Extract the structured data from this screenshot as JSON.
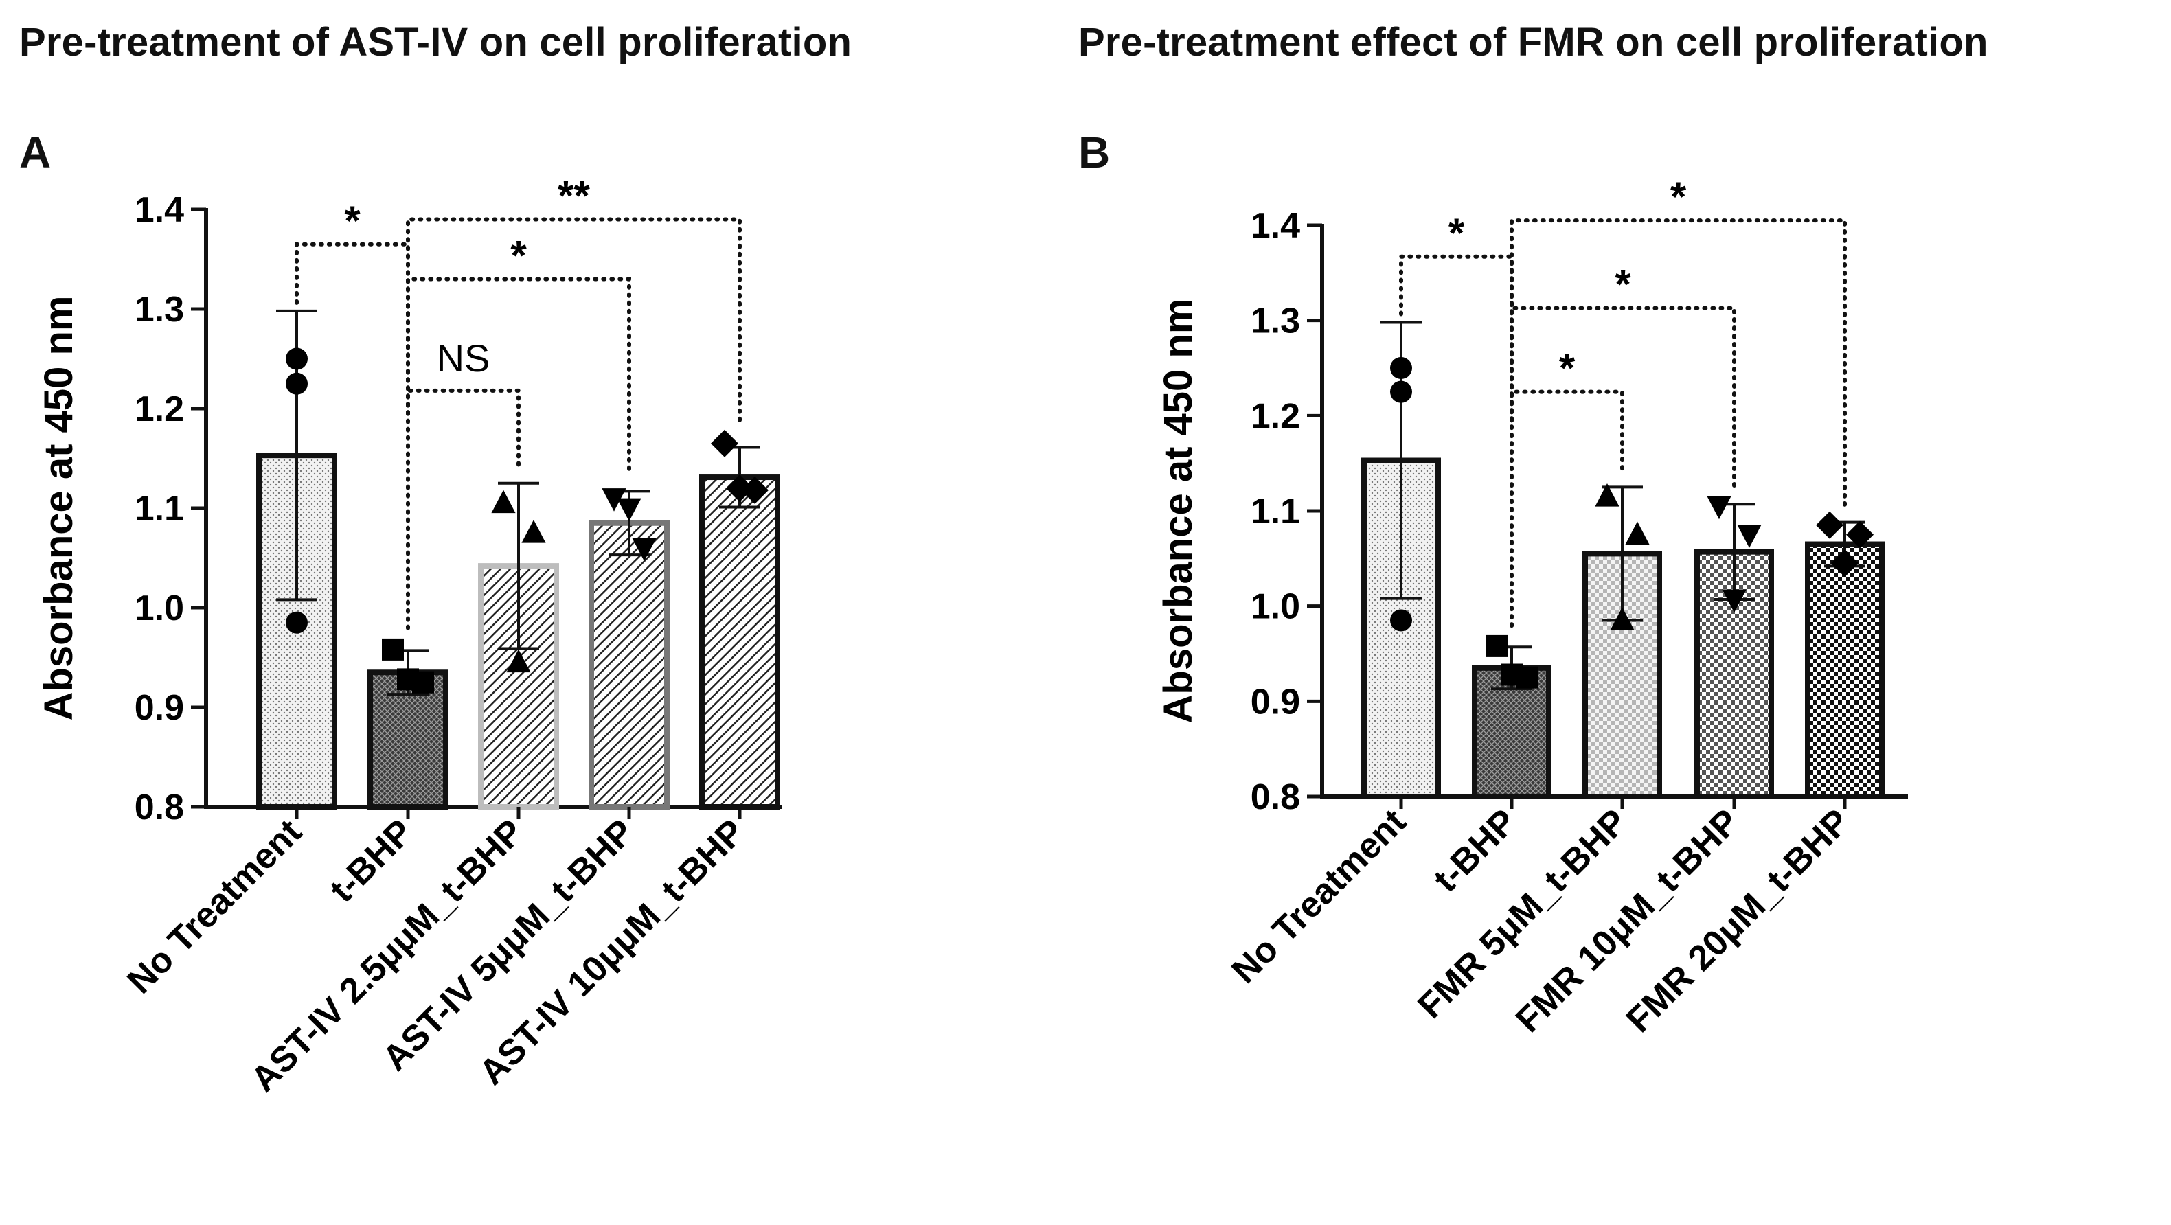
{
  "figure": {
    "panel_a_title": "Pre-treatment of AST-IV on cell proliferation",
    "panel_b_title": "Pre-treatment effect of FMR on cell proliferation",
    "panel_a_letter": "A",
    "panel_b_letter": "B"
  },
  "chart_data": [
    {
      "type": "bar",
      "panel": "A",
      "title": "Pre-treatment of AST-IV on cell proliferation",
      "xlabel": "",
      "ylabel": "Absorbance at 450 nm",
      "ylim": [
        0.8,
        1.4
      ],
      "yticks": [
        "0.8",
        "0.9",
        "1.0",
        "1.1",
        "1.2",
        "1.3",
        "1.4"
      ],
      "categories": [
        "No Treatment",
        "t-BHP",
        "AST-IV 2.5μμM_t-BHP",
        "AST-IV 5μμM_t-BHP",
        "AST-IV 10μμM_t-BHP"
      ],
      "values": [
        1.153,
        0.935,
        1.042,
        1.085,
        1.131
      ],
      "error": [
        0.145,
        0.022,
        0.083,
        0.032,
        0.03
      ],
      "points": [
        [
          1.25,
          1.225,
          0.985
        ],
        [
          0.958,
          0.925,
          0.928
        ],
        [
          1.105,
          1.075,
          0.945
        ],
        [
          1.11,
          1.06,
          1.1
        ],
        [
          1.165,
          1.118,
          1.12
        ]
      ],
      "markers": [
        "circle",
        "square",
        "triangle-up",
        "triangle-down",
        "diamond"
      ],
      "bar_fills": [
        "#ececec",
        "#2a2a2a",
        "#c2c2c2",
        "#7a7a7a",
        "#3a3a3a"
      ],
      "bar_edges": [
        "#111111",
        "#111111",
        "#bdbdbd",
        "#777777",
        "#111111"
      ],
      "patterns": [
        "dots",
        "crosshatch",
        "diag",
        "diag",
        "diag"
      ],
      "comparisons": [
        {
          "from": 0,
          "to": 1,
          "label": "*",
          "y": 1.365
        },
        {
          "from": 1,
          "to": 4,
          "label": "**",
          "y": 1.39
        },
        {
          "from": 1,
          "to": 3,
          "label": "*",
          "y": 1.33
        },
        {
          "from": 1,
          "to": 2,
          "label": "NS",
          "y": 1.218
        }
      ]
    },
    {
      "type": "bar",
      "panel": "B",
      "title": "Pre-treatment effect of FMR on cell proliferation",
      "xlabel": "",
      "ylabel": "Absorbance at 450 nm",
      "ylim": [
        0.8,
        1.4
      ],
      "yticks": [
        "0.8",
        "0.9",
        "1.0",
        "1.1",
        "1.2",
        "1.3",
        "1.4"
      ],
      "categories": [
        "No Treatment",
        "t-BHP",
        "FMR 5μM_t-BHP",
        "FMR 10μM_t-BHP",
        "FMR 20μM_t-BHP"
      ],
      "values": [
        1.153,
        0.935,
        1.055,
        1.057,
        1.065
      ],
      "error": [
        0.145,
        0.022,
        0.07,
        0.05,
        0.023
      ],
      "points": [
        [
          1.25,
          1.225,
          0.985
        ],
        [
          0.958,
          0.925,
          0.928
        ],
        [
          1.115,
          1.075,
          0.985
        ],
        [
          1.105,
          1.075,
          1.007
        ],
        [
          1.085,
          1.075,
          1.045
        ]
      ],
      "markers": [
        "circle",
        "square",
        "triangle-up",
        "triangle-down",
        "diamond"
      ],
      "bar_fills": [
        "#ececec",
        "#2a2a2a",
        "#dcdcdc",
        "#a8a8a8",
        "#3a3a3a"
      ],
      "bar_edges": [
        "#111111",
        "#111111",
        "#111111",
        "#111111",
        "#111111"
      ],
      "patterns": [
        "dots",
        "crosshatch",
        "checker",
        "checker",
        "checker"
      ],
      "comparisons": [
        {
          "from": 0,
          "to": 1,
          "label": "*",
          "y": 1.367
        },
        {
          "from": 1,
          "to": 4,
          "label": "*",
          "y": 1.405
        },
        {
          "from": 1,
          "to": 3,
          "label": "*",
          "y": 1.313
        },
        {
          "from": 1,
          "to": 2,
          "label": "*",
          "y": 1.225
        }
      ]
    }
  ]
}
